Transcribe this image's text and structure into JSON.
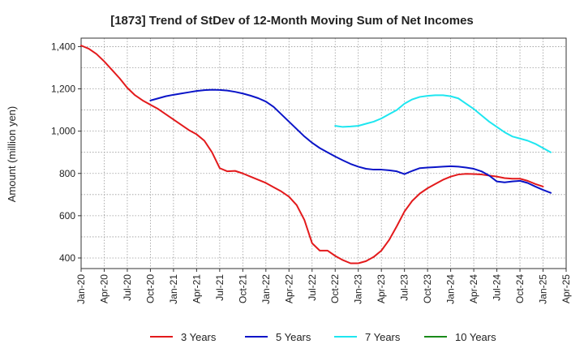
{
  "chart_data": {
    "type": "line",
    "title": "[1873]  Trend of StDev of 12-Month Moving Sum of Net Incomes",
    "xlabel": "",
    "ylabel": "Amount (million yen)",
    "ylim": [
      350,
      1440
    ],
    "yticks": [
      400,
      600,
      800,
      1000,
      1200,
      1400
    ],
    "ytick_labels": [
      "400",
      "600",
      "800",
      "1,000",
      "1,200",
      "1,400"
    ],
    "x_tick_labels": [
      "Jan-20",
      "Apr-20",
      "Jul-20",
      "Oct-20",
      "Jan-21",
      "Apr-21",
      "Jul-21",
      "Oct-21",
      "Jan-22",
      "Apr-22",
      "Jul-22",
      "Oct-22",
      "Jan-23",
      "Apr-23",
      "Jul-23",
      "Oct-23",
      "Jan-24",
      "Apr-24",
      "Jul-24",
      "Oct-24",
      "Jan-25",
      "Apr-25"
    ],
    "grid": true,
    "legend_position": "bottom",
    "series": [
      {
        "name": "3 Years",
        "color": "#e31a1c",
        "points": [
          [
            "Jan-20",
            1405
          ],
          [
            "Feb-20",
            1390
          ],
          [
            "Mar-20",
            1365
          ],
          [
            "Apr-20",
            1330
          ],
          [
            "May-20",
            1290
          ],
          [
            "Jun-20",
            1250
          ],
          [
            "Jul-20",
            1205
          ],
          [
            "Aug-20",
            1170
          ],
          [
            "Sep-20",
            1145
          ],
          [
            "Oct-20",
            1125
          ],
          [
            "Nov-20",
            1105
          ],
          [
            "Dec-20",
            1080
          ],
          [
            "Jan-21",
            1055
          ],
          [
            "Feb-21",
            1030
          ],
          [
            "Mar-21",
            1005
          ],
          [
            "Apr-21",
            985
          ],
          [
            "May-21",
            955
          ],
          [
            "Jun-21",
            900
          ],
          [
            "Jul-21",
            825
          ],
          [
            "Aug-21",
            810
          ],
          [
            "Sep-21",
            812
          ],
          [
            "Oct-21",
            800
          ],
          [
            "Nov-21",
            785
          ],
          [
            "Dec-21",
            770
          ],
          [
            "Jan-22",
            755
          ],
          [
            "Feb-22",
            735
          ],
          [
            "Mar-22",
            715
          ],
          [
            "Apr-22",
            690
          ],
          [
            "May-22",
            650
          ],
          [
            "Jun-22",
            580
          ],
          [
            "Jul-22",
            470
          ],
          [
            "Aug-22",
            435
          ],
          [
            "Sep-22",
            435
          ],
          [
            "Oct-22",
            410
          ],
          [
            "Nov-22",
            390
          ],
          [
            "Dec-22",
            375
          ],
          [
            "Jan-23",
            375
          ],
          [
            "Feb-23",
            385
          ],
          [
            "Mar-23",
            405
          ],
          [
            "Apr-23",
            435
          ],
          [
            "May-23",
            485
          ],
          [
            "Jun-23",
            550
          ],
          [
            "Jul-23",
            620
          ],
          [
            "Aug-23",
            670
          ],
          [
            "Sep-23",
            705
          ],
          [
            "Oct-23",
            730
          ],
          [
            "Nov-23",
            750
          ],
          [
            "Dec-23",
            770
          ],
          [
            "Jan-24",
            785
          ],
          [
            "Feb-24",
            795
          ],
          [
            "Mar-24",
            798
          ],
          [
            "Apr-24",
            797
          ],
          [
            "May-24",
            795
          ],
          [
            "Jun-24",
            790
          ],
          [
            "Jul-24",
            785
          ],
          [
            "Aug-24",
            778
          ],
          [
            "Sep-24",
            775
          ],
          [
            "Oct-24",
            775
          ],
          [
            "Nov-24",
            765
          ],
          [
            "Dec-24",
            750
          ],
          [
            "Jan-25",
            738
          ]
        ]
      },
      {
        "name": "5 Years",
        "color": "#0a14c8",
        "points": [
          [
            "Oct-20",
            1145
          ],
          [
            "Nov-20",
            1155
          ],
          [
            "Dec-20",
            1165
          ],
          [
            "Jan-21",
            1172
          ],
          [
            "Feb-21",
            1178
          ],
          [
            "Mar-21",
            1184
          ],
          [
            "Apr-21",
            1190
          ],
          [
            "May-21",
            1194
          ],
          [
            "Jun-21",
            1196
          ],
          [
            "Jul-21",
            1195
          ],
          [
            "Aug-21",
            1192
          ],
          [
            "Sep-21",
            1186
          ],
          [
            "Oct-21",
            1178
          ],
          [
            "Nov-21",
            1168
          ],
          [
            "Dec-21",
            1156
          ],
          [
            "Jan-22",
            1140
          ],
          [
            "Feb-22",
            1115
          ],
          [
            "Mar-22",
            1080
          ],
          [
            "Apr-22",
            1045
          ],
          [
            "May-22",
            1010
          ],
          [
            "Jun-22",
            975
          ],
          [
            "Jul-22",
            945
          ],
          [
            "Aug-22",
            920
          ],
          [
            "Sep-22",
            900
          ],
          [
            "Oct-22",
            880
          ],
          [
            "Nov-22",
            862
          ],
          [
            "Dec-22",
            845
          ],
          [
            "Jan-23",
            832
          ],
          [
            "Feb-23",
            822
          ],
          [
            "Mar-23",
            818
          ],
          [
            "Apr-23",
            818
          ],
          [
            "May-23",
            815
          ],
          [
            "Jun-23",
            810
          ],
          [
            "Jul-23",
            797
          ],
          [
            "Aug-23",
            812
          ],
          [
            "Sep-23",
            825
          ],
          [
            "Oct-23",
            828
          ],
          [
            "Nov-23",
            830
          ],
          [
            "Dec-23",
            832
          ],
          [
            "Jan-24",
            834
          ],
          [
            "Feb-24",
            832
          ],
          [
            "Mar-24",
            828
          ],
          [
            "Apr-24",
            822
          ],
          [
            "May-24",
            810
          ],
          [
            "Jun-24",
            790
          ],
          [
            "Jul-24",
            762
          ],
          [
            "Aug-24",
            758
          ],
          [
            "Sep-24",
            762
          ],
          [
            "Oct-24",
            765
          ],
          [
            "Nov-24",
            755
          ],
          [
            "Dec-24",
            738
          ],
          [
            "Jan-25",
            722
          ],
          [
            "Feb-25",
            708
          ]
        ]
      },
      {
        "name": "7 Years",
        "color": "#1ee6f0",
        "points": [
          [
            "Oct-22",
            1025
          ],
          [
            "Nov-22",
            1020
          ],
          [
            "Dec-22",
            1022
          ],
          [
            "Jan-23",
            1025
          ],
          [
            "Feb-23",
            1035
          ],
          [
            "Mar-23",
            1045
          ],
          [
            "Apr-23",
            1060
          ],
          [
            "May-23",
            1080
          ],
          [
            "Jun-23",
            1100
          ],
          [
            "Jul-23",
            1130
          ],
          [
            "Aug-23",
            1150
          ],
          [
            "Sep-23",
            1162
          ],
          [
            "Oct-23",
            1167
          ],
          [
            "Nov-23",
            1170
          ],
          [
            "Dec-23",
            1170
          ],
          [
            "Jan-24",
            1165
          ],
          [
            "Feb-24",
            1155
          ],
          [
            "Mar-24",
            1130
          ],
          [
            "Apr-24",
            1105
          ],
          [
            "May-24",
            1075
          ],
          [
            "Jun-24",
            1045
          ],
          [
            "Jul-24",
            1020
          ],
          [
            "Aug-24",
            995
          ],
          [
            "Sep-24",
            975
          ],
          [
            "Oct-24",
            965
          ],
          [
            "Nov-24",
            955
          ],
          [
            "Dec-24",
            940
          ],
          [
            "Jan-25",
            920
          ],
          [
            "Feb-25",
            900
          ]
        ]
      },
      {
        "name": "10 Years",
        "color": "#1a8a1a",
        "points": []
      }
    ]
  }
}
